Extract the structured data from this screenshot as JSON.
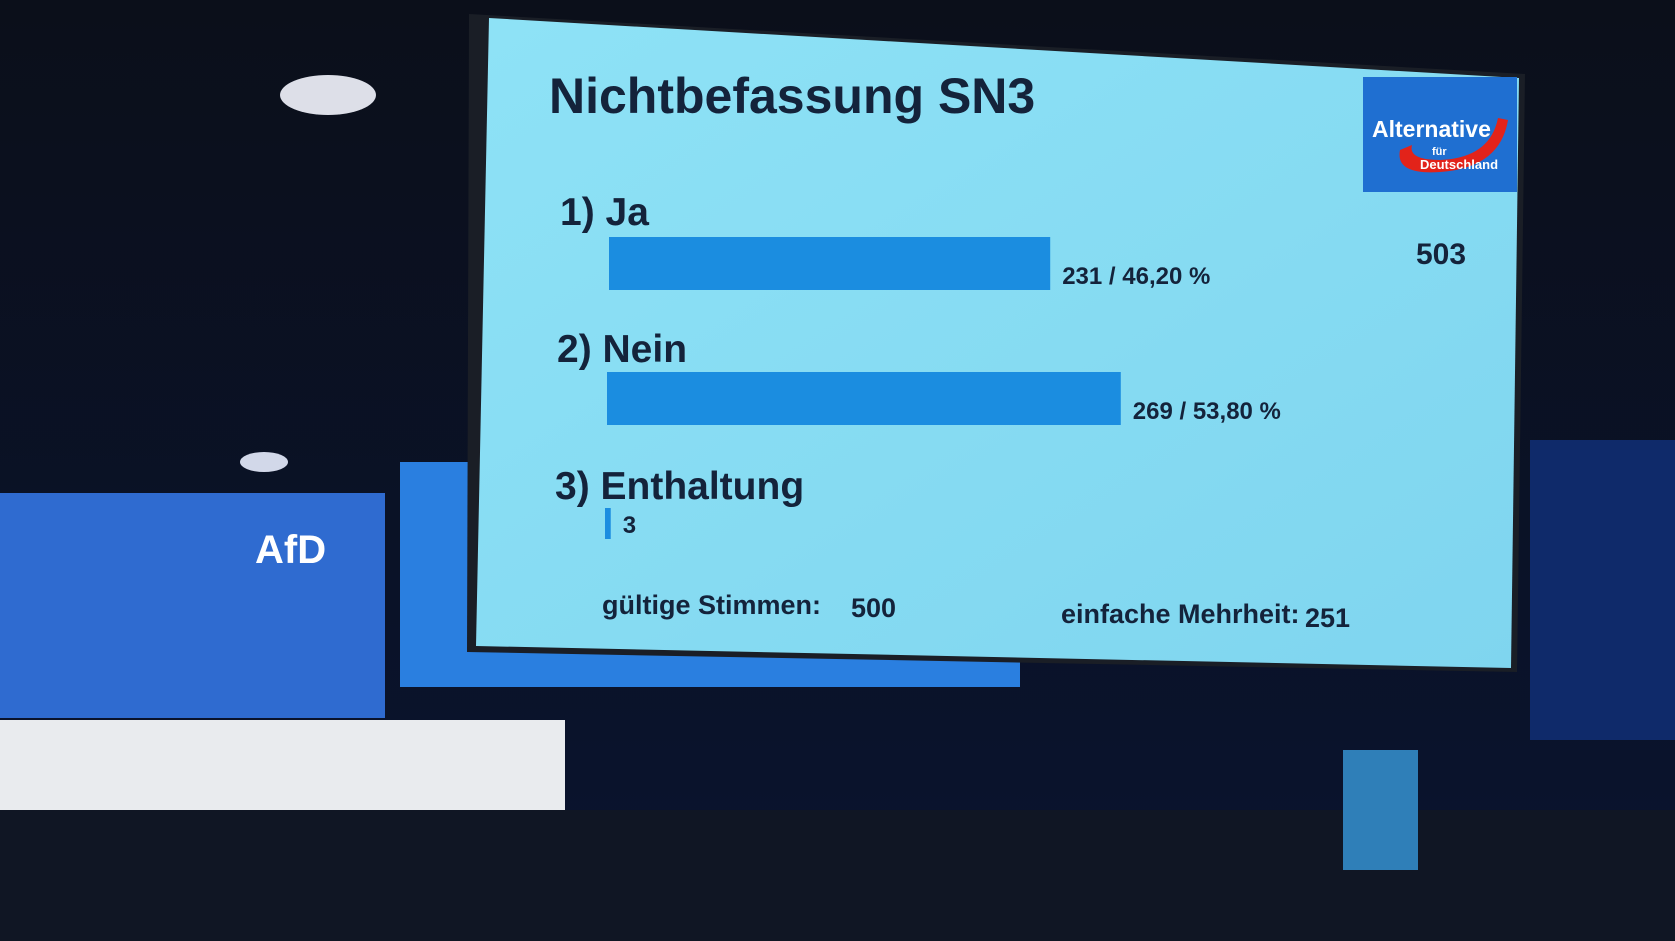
{
  "chart_data": {
    "type": "hbar",
    "title": "Nichtbefassung SN3",
    "categories": [
      "1) Ja",
      "2) Nein",
      "3) Enthaltung"
    ],
    "values": [
      231,
      269,
      3
    ],
    "value_labels": [
      "231 / 46,20 %",
      "269 / 53,80 %",
      "3"
    ],
    "color": "#1b8de0",
    "total": 503,
    "valid_votes_label": "gültige Stimmen:",
    "valid_votes": 500,
    "majority_label": "einfache Mehrheit:",
    "majority": 251
  },
  "logo": {
    "line1": "Alternative",
    "line2": "für",
    "line3": "Deutschland"
  },
  "stage": {
    "banner": "AfD"
  }
}
